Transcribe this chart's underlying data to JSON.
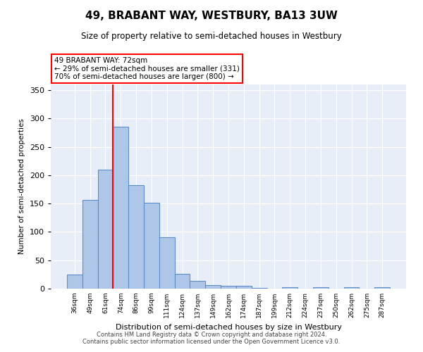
{
  "title": "49, BRABANT WAY, WESTBURY, BA13 3UW",
  "subtitle": "Size of property relative to semi-detached houses in Westbury",
  "xlabel": "Distribution of semi-detached houses by size in Westbury",
  "ylabel": "Number of semi-detached properties",
  "categories": [
    "36sqm",
    "49sqm",
    "61sqm",
    "74sqm",
    "86sqm",
    "99sqm",
    "111sqm",
    "124sqm",
    "137sqm",
    "149sqm",
    "162sqm",
    "174sqm",
    "187sqm",
    "199sqm",
    "212sqm",
    "224sqm",
    "237sqm",
    "250sqm",
    "262sqm",
    "275sqm",
    "287sqm"
  ],
  "values": [
    25,
    156,
    210,
    286,
    183,
    152,
    91,
    26,
    14,
    6,
    5,
    5,
    1,
    0,
    3,
    0,
    3,
    0,
    2,
    0,
    2
  ],
  "bar_color": "#aec6e8",
  "bar_edge_color": "#5b8fc9",
  "red_line_index": 3,
  "annotation_text_line1": "49 BRABANT WAY: 72sqm",
  "annotation_text_line2": "← 29% of semi-detached houses are smaller (331)",
  "annotation_text_line3": "70% of semi-detached houses are larger (800) →",
  "annotation_box_color": "white",
  "annotation_box_edge_color": "red",
  "red_line_color": "red",
  "ylim": [
    0,
    360
  ],
  "yticks": [
    0,
    50,
    100,
    150,
    200,
    250,
    300,
    350
  ],
  "background_color": "#e8eef8",
  "footer_line1": "Contains HM Land Registry data © Crown copyright and database right 2024.",
  "footer_line2": "Contains public sector information licensed under the Open Government Licence v3.0."
}
